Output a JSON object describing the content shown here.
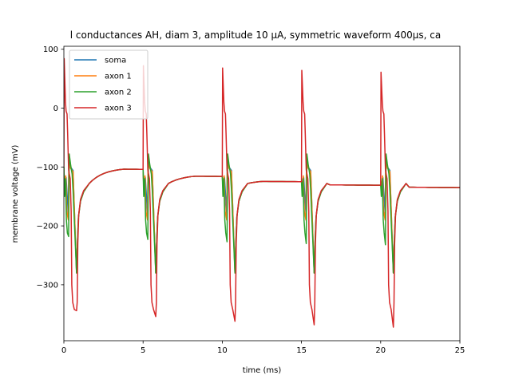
{
  "chart_data": {
    "type": "line",
    "title": "l conductances AH, diam 3, amplitude 10 μA, symmetric waveform 400μs, ca",
    "xlabel": "time (ms)",
    "ylabel": "membrane voltage (mV)",
    "xlim": [
      0,
      25
    ],
    "ylim": [
      -395,
      105
    ],
    "xticks": [
      0,
      5,
      10,
      15,
      20,
      25
    ],
    "xtick_labels": [
      "0",
      "5",
      "10",
      "15",
      "20",
      "25"
    ],
    "yticks": [
      100,
      0,
      -100,
      -200,
      -300
    ],
    "ytick_labels": [
      "100",
      "0",
      "−100",
      "−200",
      "−300"
    ],
    "grid": false,
    "legend_position": "top-left",
    "series": [
      {
        "name": "soma",
        "color": "#1f77b4"
      },
      {
        "name": "axon 1",
        "color": "#ff7f0e"
      },
      {
        "name": "axon 2",
        "color": "#2ca02c"
      },
      {
        "name": "axon 3",
        "color": "#d62728"
      }
    ],
    "pulse_starts_ms": [
      0,
      5,
      10,
      15,
      20
    ],
    "pulses": [
      {
        "peak": 84,
        "plateau": -100,
        "trough_axon2": -218,
        "undershoot": -344,
        "end_level": -104
      },
      {
        "peak": 72,
        "plateau": -103,
        "trough_axon2": -223,
        "undershoot": -354,
        "end_level": -116
      },
      {
        "peak": 68,
        "plateau": -115,
        "trough_axon2": -227,
        "undershoot": -362,
        "end_level": -125
      },
      {
        "peak": 64,
        "plateau": -124,
        "trough_axon2": -230,
        "undershoot": -368,
        "end_level": -131
      },
      {
        "peak": 61,
        "plateau": -131,
        "trough_axon2": -232,
        "undershoot": -372,
        "end_level": -135
      }
    ]
  }
}
